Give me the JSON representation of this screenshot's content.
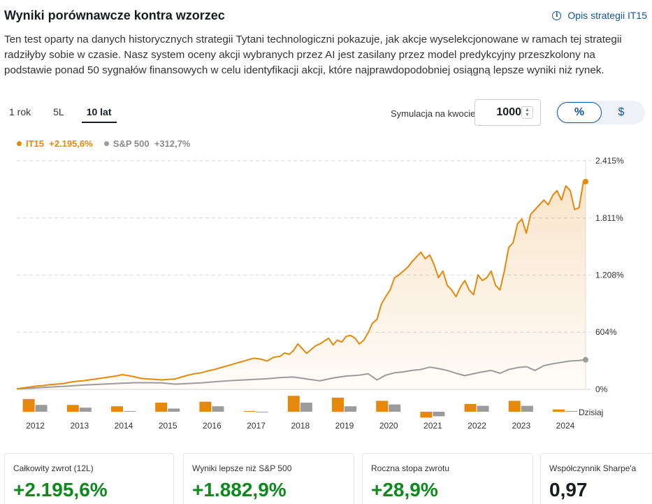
{
  "header": {
    "title": "Wyniki porównawcze kontra wzorzec",
    "strategy_link": "Opis strategii IT15"
  },
  "description": "Ten test oparty na danych historycznych strategii Tytani technologiczni pokazuje, jak akcje wyselekcjonowane w ramach tej strategii radziłyby sobie w czasie. Nasz system oceny akcji wybranych przez AI jest zasilany przez model predykcyjny przeszkolony na podstawie ponad 50 sygnałów finansowych w celu identyfikacji akcji, które najprawdopodobniej osiągną lepsze wyniki niż rynek.",
  "tabs": [
    {
      "label": "1 rok",
      "active": false
    },
    {
      "label": "5L",
      "active": false
    },
    {
      "label": "10 lat",
      "active": true
    }
  ],
  "simulation": {
    "label": "Symulacja na kwocie",
    "value": "1000"
  },
  "toggle": {
    "percent": "%",
    "dollar": "$"
  },
  "legend": [
    {
      "name": "IT15",
      "value": "+2.195,6%",
      "color": "#e4880e"
    },
    {
      "name": "S&P 500",
      "value": "+312,7%",
      "color": "#9b9b9b"
    }
  ],
  "colors": {
    "it15": "#e4880e",
    "sp500": "#9b9b9b",
    "grid": "#d6d6d6"
  },
  "chart_data": {
    "type": "line",
    "y_ticks": [
      {
        "value": 2415,
        "label": "2.415%"
      },
      {
        "value": 1811,
        "label": "1.811%"
      },
      {
        "value": 1208,
        "label": "1.208%"
      },
      {
        "value": 604,
        "label": "604%"
      },
      {
        "value": 0,
        "label": "0%"
      }
    ],
    "ylim": [
      0,
      2415
    ],
    "x_range": [
      2012.0,
      2024.95
    ],
    "series": [
      {
        "name": "IT15",
        "x": [
          2012.0,
          2012.15,
          2012.3,
          2012.45,
          2012.6,
          2012.75,
          2012.9,
          2013.05,
          2013.2,
          2013.35,
          2013.5,
          2013.65,
          2013.8,
          2013.95,
          2014.1,
          2014.25,
          2014.4,
          2014.55,
          2014.7,
          2014.85,
          2015.0,
          2015.15,
          2015.3,
          2015.45,
          2015.6,
          2015.75,
          2015.9,
          2016.05,
          2016.2,
          2016.35,
          2016.5,
          2016.65,
          2016.8,
          2016.95,
          2017.1,
          2017.25,
          2017.4,
          2017.55,
          2017.7,
          2017.85,
          2018.0,
          2018.1,
          2018.2,
          2018.3,
          2018.4,
          2018.5,
          2018.6,
          2018.7,
          2018.8,
          2018.9,
          2019.0,
          2019.1,
          2019.2,
          2019.3,
          2019.4,
          2019.5,
          2019.6,
          2019.7,
          2019.8,
          2019.9,
          2020.0,
          2020.1,
          2020.2,
          2020.3,
          2020.4,
          2020.5,
          2020.6,
          2020.7,
          2020.8,
          2020.9,
          2021.0,
          2021.1,
          2021.2,
          2021.3,
          2021.4,
          2021.5,
          2021.6,
          2021.7,
          2021.8,
          2021.9,
          2022.0,
          2022.1,
          2022.2,
          2022.3,
          2022.4,
          2022.5,
          2022.6,
          2022.7,
          2022.8,
          2022.9,
          2023.0,
          2023.1,
          2023.2,
          2023.3,
          2023.4,
          2023.5,
          2023.6,
          2023.7,
          2023.8,
          2023.9,
          2024.0,
          2024.1,
          2024.2,
          2024.3,
          2024.4,
          2024.5,
          2024.6,
          2024.7,
          2024.8,
          2024.9,
          2024.95
        ],
        "values": [
          5,
          15,
          25,
          35,
          40,
          50,
          55,
          60,
          75,
          85,
          90,
          100,
          110,
          120,
          130,
          140,
          155,
          145,
          130,
          115,
          110,
          105,
          100,
          105,
          110,
          130,
          150,
          165,
          175,
          195,
          210,
          230,
          250,
          270,
          290,
          310,
          330,
          320,
          300,
          340,
          350,
          385,
          370,
          410,
          480,
          430,
          380,
          420,
          460,
          480,
          510,
          540,
          470,
          520,
          500,
          560,
          570,
          540,
          480,
          520,
          600,
          700,
          740,
          900,
          980,
          1050,
          1180,
          1210,
          1250,
          1290,
          1350,
          1400,
          1450,
          1380,
          1420,
          1320,
          1180,
          1250,
          1100,
          1050,
          980,
          1080,
          1150,
          1050,
          1000,
          1210,
          1150,
          1180,
          1250,
          1100,
          1050,
          1250,
          1500,
          1550,
          1750,
          1800,
          1650,
          1850,
          1900,
          1950,
          2000,
          1950,
          2050,
          2100,
          2000,
          2150,
          2100,
          1900,
          1920,
          2195,
          2195
        ]
      },
      {
        "name": "S&P 500",
        "x": [
          2012.0,
          2012.3,
          2012.6,
          2012.9,
          2013.2,
          2013.5,
          2013.8,
          2014.1,
          2014.4,
          2014.7,
          2015.0,
          2015.3,
          2015.6,
          2015.9,
          2016.2,
          2016.5,
          2016.8,
          2017.1,
          2017.4,
          2017.7,
          2018.0,
          2018.3,
          2018.6,
          2018.9,
          2019.2,
          2019.5,
          2019.8,
          2020.0,
          2020.2,
          2020.4,
          2020.6,
          2020.8,
          2021.0,
          2021.2,
          2021.4,
          2021.6,
          2021.8,
          2022.0,
          2022.2,
          2022.4,
          2022.6,
          2022.8,
          2023.0,
          2023.2,
          2023.4,
          2023.6,
          2023.8,
          2024.0,
          2024.2,
          2024.4,
          2024.6,
          2024.8,
          2024.95
        ],
        "values": [
          5,
          12,
          20,
          28,
          35,
          45,
          52,
          58,
          65,
          70,
          70,
          68,
          55,
          62,
          68,
          80,
          90,
          98,
          105,
          112,
          125,
          130,
          110,
          90,
          120,
          140,
          150,
          165,
          100,
          150,
          175,
          185,
          200,
          210,
          235,
          220,
          200,
          170,
          145,
          165,
          185,
          200,
          170,
          210,
          230,
          240,
          200,
          250,
          270,
          285,
          300,
          305,
          312.7
        ]
      }
    ]
  },
  "annual_returns": {
    "years": [
      2012,
      2013,
      2014,
      2015,
      2016,
      2017,
      2018,
      2019,
      2020,
      2021,
      2022,
      2023,
      2024
    ],
    "it15": [
      28,
      15,
      12,
      20,
      22,
      1,
      35,
      31,
      24,
      -13,
      17,
      24,
      5
    ],
    "sp500": [
      15,
      9,
      0,
      7,
      12,
      -1,
      20,
      12,
      16,
      -10,
      13,
      13,
      0
    ],
    "today_label": "Dzisiaj"
  },
  "stats": [
    {
      "label": "Całkowity zwrot (12L)",
      "value": "+2.195,6%",
      "tone": "green"
    },
    {
      "label": "Wyniki lepsze niż S&P 500",
      "value": "+1.882,9%",
      "tone": "green"
    },
    {
      "label": "Roczna stopa zwrotu",
      "value": "+28,9%",
      "tone": "green"
    },
    {
      "label": "Współczynnik Sharpe'a",
      "value": "0,97",
      "tone": "dark"
    }
  ]
}
